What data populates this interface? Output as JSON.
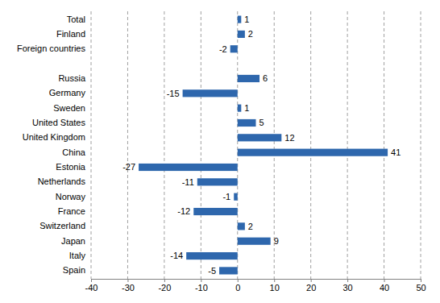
{
  "chart_data": {
    "type": "bar",
    "orientation": "horizontal",
    "categories": [
      "Total",
      "Finland",
      "Foreign countries",
      null,
      "Russia",
      "Germany",
      "Sweden",
      "United States",
      "United Kingdom",
      "China",
      "Estonia",
      "Netherlands",
      "Norway",
      "France",
      "Switzerland",
      "Japan",
      "Italy",
      "Spain"
    ],
    "values": [
      1,
      2,
      -2,
      null,
      6,
      -15,
      1,
      5,
      12,
      41,
      -27,
      -11,
      -1,
      -12,
      2,
      9,
      -14,
      -5
    ],
    "color": "#2e67ad",
    "xlim": [
      -40,
      50
    ],
    "xticks": [
      -40,
      -30,
      -20,
      -10,
      0,
      10,
      20,
      30,
      40,
      50
    ],
    "grid": true,
    "data_labels": true
  }
}
